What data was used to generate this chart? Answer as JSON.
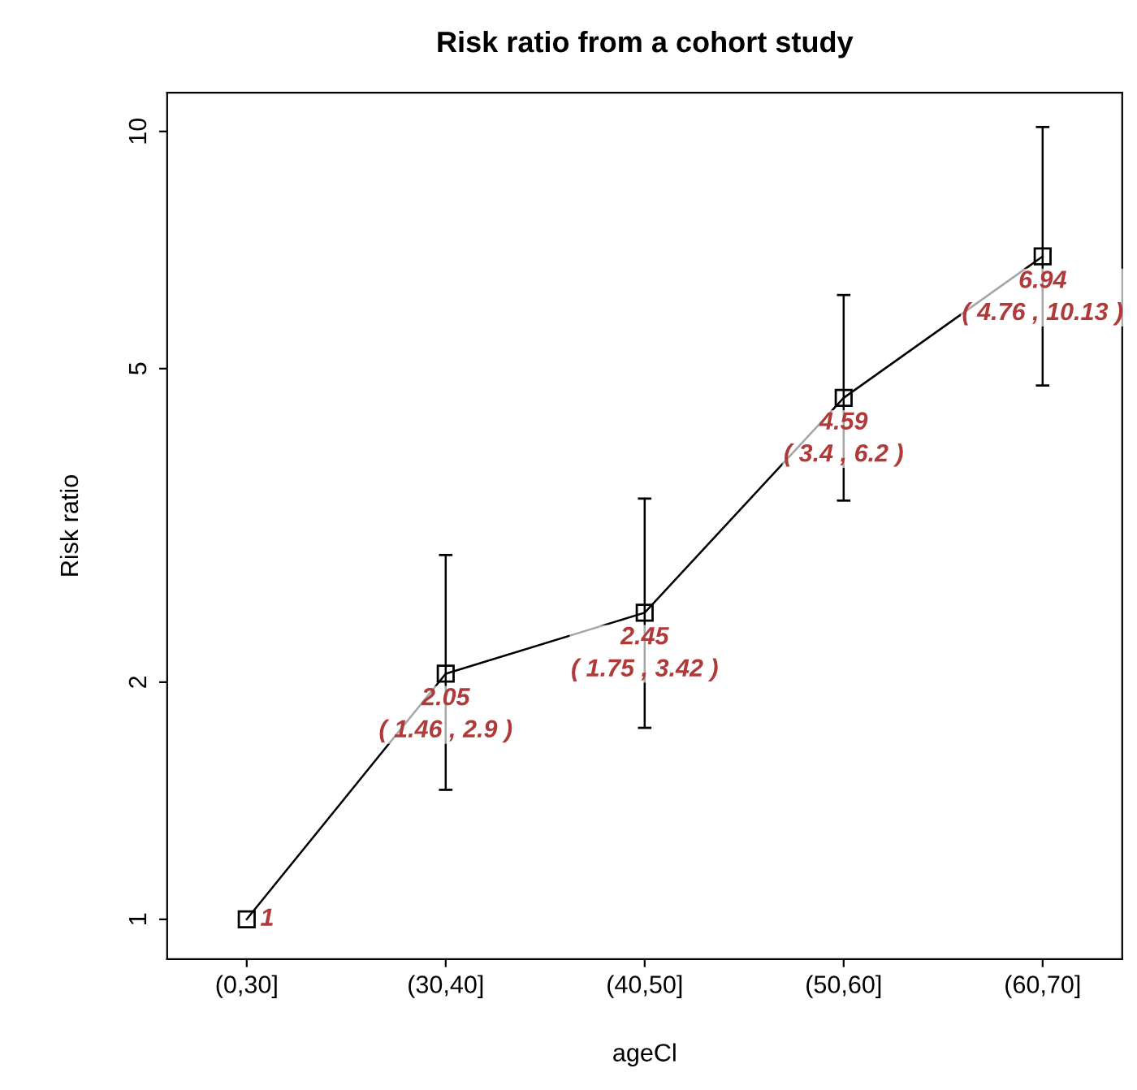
{
  "chart_data": {
    "type": "line",
    "title": "Risk ratio from a cohort study",
    "xlabel": "ageCl",
    "ylabel": "Risk ratio",
    "categories": [
      "(0,30]",
      "(30,40]",
      "(40,50]",
      "(50,60]",
      "(60,70]"
    ],
    "series": [
      {
        "color": "#000000",
        "values": [
          1,
          2.05,
          2.45,
          4.59,
          6.94
        ],
        "errors": [
          null,
          [
            1.46,
            2.9
          ],
          [
            1.75,
            3.42
          ],
          [
            3.4,
            6.2
          ],
          [
            4.76,
            10.13
          ]
        ],
        "value_labels": [
          "1",
          "2.05\n( 1.46 , 2.9 )",
          "2.45\n( 1.75 , 3.42 )",
          "4.59\n( 3.4 , 6.2 )",
          "6.94\n( 4.76 , 10.13 )"
        ]
      }
    ],
    "log": "y",
    "ylim": [
      0.89,
      11.2
    ],
    "yticks": [
      1,
      2,
      5,
      10
    ],
    "marker": "square",
    "line_style": "solid",
    "grid": false
  }
}
